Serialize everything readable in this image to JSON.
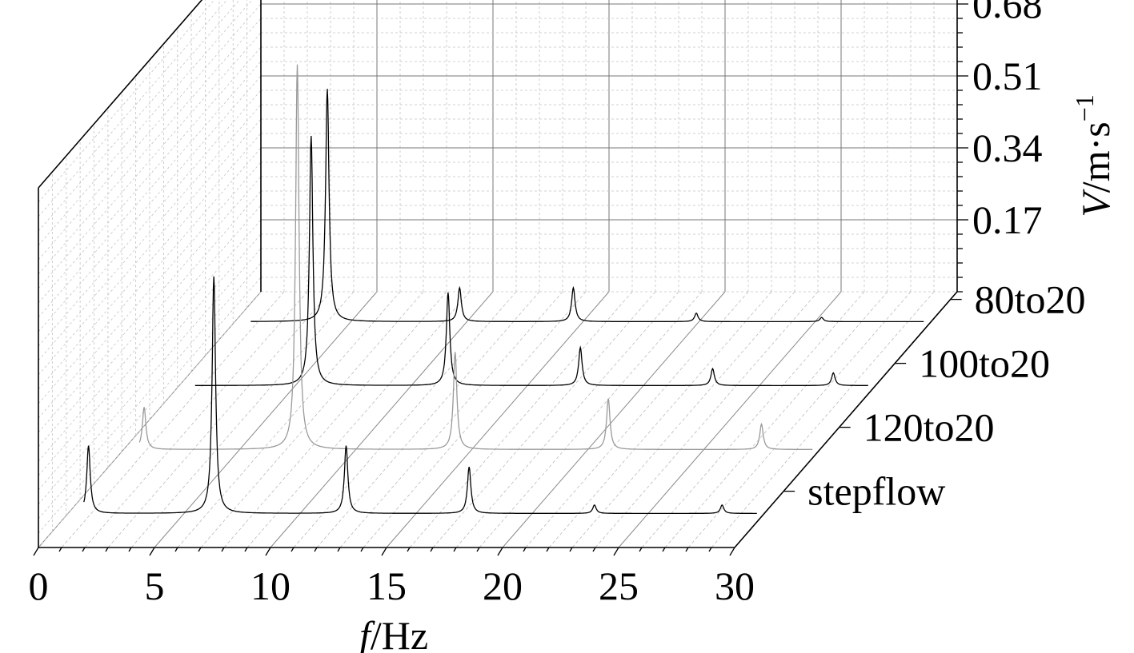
{
  "chart_data": {
    "type": "line",
    "subtype": "3d-waterfall",
    "title": "",
    "x_axis": {
      "label_italic": "f",
      "label_rest": "/Hz",
      "range": [
        0,
        30
      ],
      "ticks": [
        "0",
        "5",
        "10",
        "15",
        "20",
        "25",
        "30"
      ]
    },
    "z_axis": {
      "label_italic": "V",
      "label_rest": "/m·s",
      "label_sup": "−1",
      "range": [
        0,
        0.85
      ],
      "ticks": [
        "0.17",
        "0.34",
        "0.51",
        "0.68"
      ]
    },
    "series": [
      {
        "name": "stepflow",
        "color": "#000000",
        "baseline": 0.02,
        "peaks": [
          {
            "x": 1.2,
            "y": 0.18
          },
          {
            "x": 6.6,
            "y": 0.58
          },
          {
            "x": 12.3,
            "y": 0.18
          },
          {
            "x": 17.6,
            "y": 0.13
          },
          {
            "x": 23.0,
            "y": 0.04
          },
          {
            "x": 28.5,
            "y": 0.04
          }
        ]
      },
      {
        "name": "120to20",
        "color": "#9a9a9a",
        "baseline": 0.02,
        "peaks": [
          {
            "x": 1.2,
            "y": 0.12
          },
          {
            "x": 7.8,
            "y": 0.93
          },
          {
            "x": 14.6,
            "y": 0.25
          },
          {
            "x": 21.2,
            "y": 0.14
          },
          {
            "x": 27.8,
            "y": 0.08
          }
        ]
      },
      {
        "name": "100to20",
        "color": "#000000",
        "baseline": 0.02,
        "peaks": [
          {
            "x": 6.0,
            "y": 0.61
          },
          {
            "x": 11.9,
            "y": 0.24
          },
          {
            "x": 17.6,
            "y": 0.11
          },
          {
            "x": 23.3,
            "y": 0.06
          },
          {
            "x": 28.5,
            "y": 0.05
          }
        ]
      },
      {
        "name": "80to20",
        "color": "#000000",
        "baseline": 0.02,
        "peaks": [
          {
            "x": 4.3,
            "y": 0.57
          },
          {
            "x": 10.0,
            "y": 0.1
          },
          {
            "x": 14.9,
            "y": 0.1
          },
          {
            "x": 20.2,
            "y": 0.04
          },
          {
            "x": 25.6,
            "y": 0.03
          }
        ]
      }
    ]
  }
}
